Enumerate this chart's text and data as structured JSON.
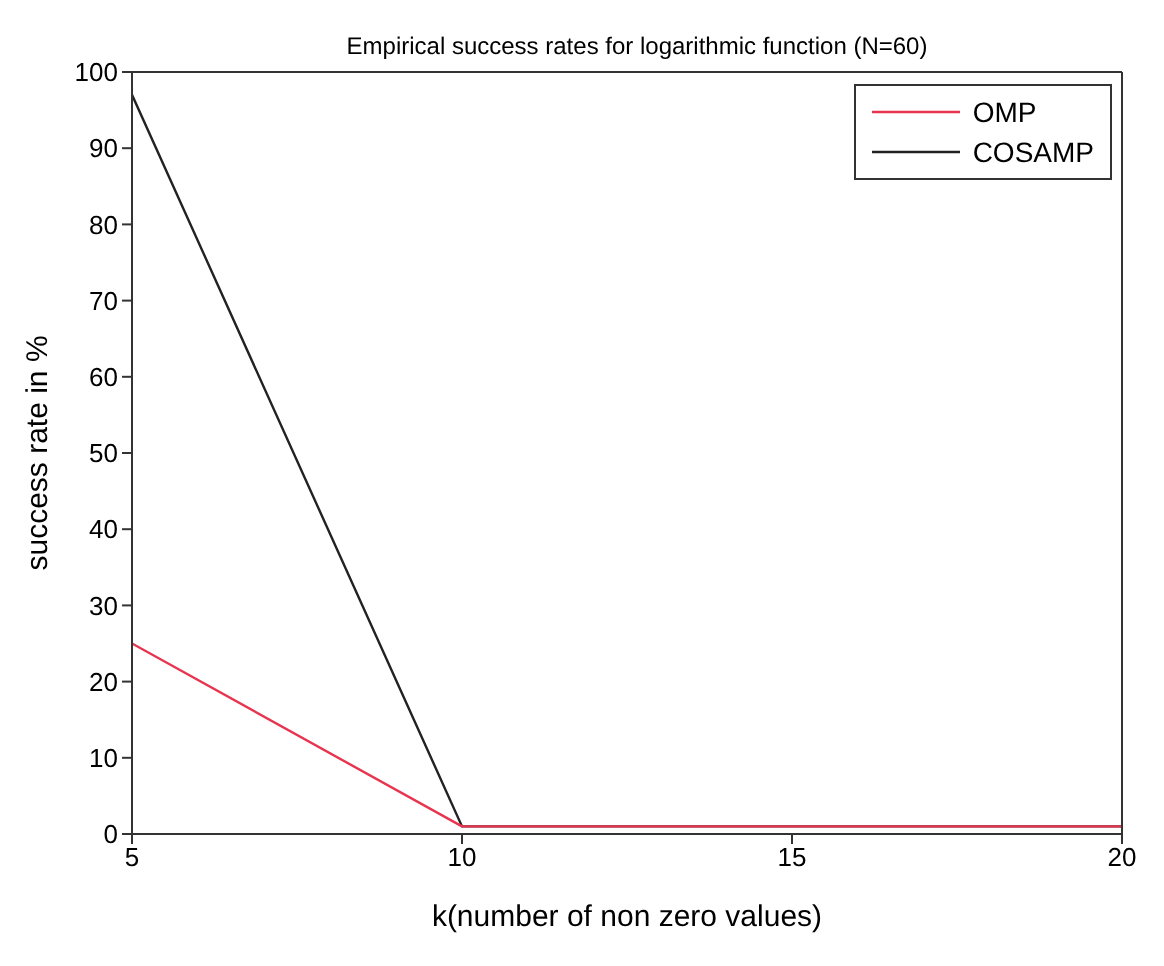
{
  "chart_data": {
    "type": "line",
    "title": "Empirical success rates for logarithmic function (N=60)",
    "xlabel": "k(number of non zero values)",
    "ylabel": "success rate in %",
    "x": [
      5,
      10,
      15,
      20
    ],
    "series": [
      {
        "name": "OMP",
        "color": "#e8344f",
        "values": [
          25,
          1,
          1,
          1
        ]
      },
      {
        "name": "COSAMP",
        "color": "#222222",
        "values": [
          97,
          1,
          1,
          1
        ]
      }
    ],
    "xlim": [
      5,
      20
    ],
    "xticks": [
      5,
      10,
      15,
      20
    ],
    "ylim": [
      0,
      100
    ],
    "yticks": [
      0,
      10,
      20,
      30,
      40,
      50,
      60,
      70,
      80,
      90,
      100
    ],
    "grid": false,
    "legend": "top right",
    "marker": "none",
    "line_style": "solid"
  }
}
